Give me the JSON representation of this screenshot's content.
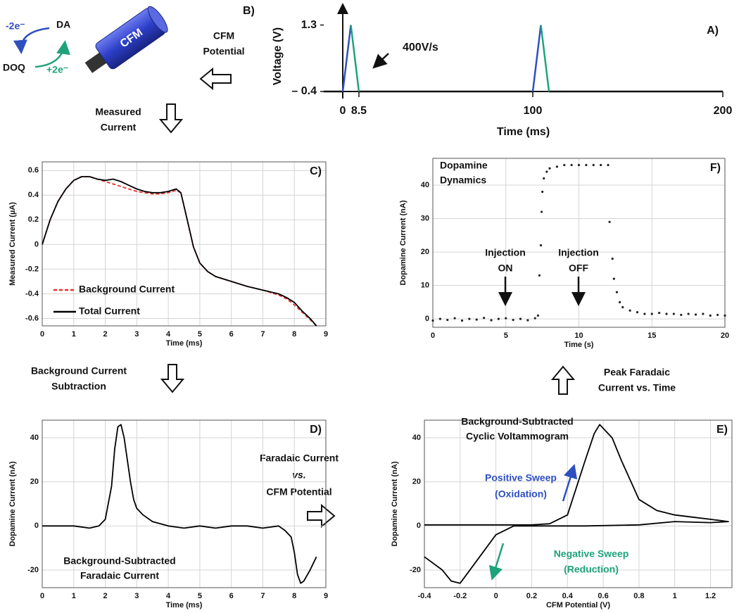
{
  "chart_data": [
    {
      "type": "line",
      "title": "A)",
      "xlabel": "Time (ms)",
      "ylabel": "Voltage (V)",
      "annotations": [
        [
          "400V/s"
        ]
      ],
      "grid": false,
      "xlim": [
        -10,
        200
      ],
      "ylim": [
        -0.4,
        1.4
      ],
      "xticks": [
        0,
        8.5,
        100,
        200
      ],
      "yticks": [
        {
          "value": -0.4,
          "label": "– 0.4"
        },
        1.3
      ],
      "x": [
        -10,
        0,
        4.25,
        8.5,
        100,
        104.25,
        108.5,
        200
      ],
      "series": [
        {
          "color": "#111111",
          "values": [
            -0.4,
            -0.4,
            null,
            -0.4,
            -0.4,
            null,
            -0.4,
            -0.4
          ]
        },
        {
          "color": "#2f4fc0",
          "values": [
            null,
            -0.4,
            1.3,
            null,
            -0.4,
            1.3,
            null,
            null
          ]
        },
        {
          "color": "#1fa37a",
          "values": [
            null,
            null,
            1.3,
            -0.4,
            null,
            1.3,
            -0.4,
            null
          ]
        }
      ]
    },
    {
      "type": "line",
      "title": "C)",
      "xlabel": "Time (ms)",
      "ylabel": "Measured Current (µA)",
      "legend": "lower left",
      "grid": true,
      "xlim": [
        0,
        9
      ],
      "ylim": [
        -0.66,
        0.67
      ],
      "xticks": [
        0,
        1,
        2,
        3,
        4,
        5,
        6,
        7,
        8,
        9
      ],
      "yticks": [
        -0.6,
        -0.4,
        -0.2,
        0,
        0.2,
        0.4,
        0.6
      ],
      "x": [
        0,
        0.25,
        0.5,
        0.75,
        1,
        1.25,
        1.5,
        1.75,
        2,
        2.25,
        2.5,
        2.75,
        3,
        3.25,
        3.5,
        3.75,
        4,
        4.25,
        4.4,
        4.6,
        4.8,
        5,
        5.25,
        5.5,
        6,
        6.5,
        7,
        7.5,
        7.75,
        8,
        8.25,
        8.5,
        8.7
      ],
      "series": [
        {
          "name": "Background Current",
          "color": "#e8302a",
          "dash": true,
          "values": [
            0,
            0.2,
            0.35,
            0.45,
            0.52,
            0.55,
            0.55,
            0.53,
            0.51,
            0.49,
            0.47,
            0.45,
            0.43,
            0.42,
            0.41,
            0.41,
            0.42,
            0.44,
            0.42,
            0.2,
            -0.02,
            -0.15,
            -0.22,
            -0.26,
            -0.3,
            -0.34,
            -0.37,
            -0.41,
            -0.44,
            -0.49,
            -0.55,
            -0.61,
            -0.66
          ]
        },
        {
          "name": "Total Current",
          "color": "#000000",
          "values": [
            0,
            0.2,
            0.35,
            0.45,
            0.52,
            0.55,
            0.55,
            0.53,
            0.52,
            0.53,
            0.51,
            0.48,
            0.45,
            0.43,
            0.42,
            0.42,
            0.43,
            0.45,
            0.42,
            0.2,
            -0.02,
            -0.15,
            -0.22,
            -0.26,
            -0.3,
            -0.34,
            -0.37,
            -0.4,
            -0.43,
            -0.47,
            -0.54,
            -0.6,
            -0.66
          ]
        }
      ]
    },
    {
      "type": "line",
      "title": "D)",
      "xlabel": "Time (ms)",
      "ylabel": "Dopamine Current (nA)",
      "annotations": [
        [
          "Background-Subtracted",
          "Faradaic Current"
        ]
      ],
      "grid": true,
      "xlim": [
        0,
        9
      ],
      "ylim": [
        -28,
        48
      ],
      "xticks": [
        0,
        1,
        2,
        3,
        4,
        5,
        6,
        7,
        8,
        9
      ],
      "yticks": [
        -20,
        0,
        20,
        40
      ],
      "x": [
        0,
        0.5,
        1,
        1.5,
        1.8,
        2,
        2.2,
        2.3,
        2.4,
        2.5,
        2.6,
        2.7,
        2.8,
        2.9,
        3,
        3.2,
        3.5,
        4,
        4.5,
        5,
        5.5,
        6,
        6.5,
        7,
        7.5,
        7.7,
        7.9,
        8,
        8.1,
        8.2,
        8.3,
        8.5,
        8.7
      ],
      "series": [
        {
          "color": "#000000",
          "values": [
            0,
            0,
            0,
            -1,
            0,
            3,
            18,
            35,
            45,
            46,
            40,
            30,
            20,
            12,
            8,
            5,
            2,
            0,
            -1,
            0,
            -1,
            0,
            0,
            -1,
            0,
            -2,
            -5,
            -12,
            -22,
            -26,
            -25,
            -20,
            -14
          ]
        }
      ]
    },
    {
      "type": "line",
      "title": "E)",
      "xlabel": "CFM Potential (V)",
      "ylabel": "Dopamine Current (nA)",
      "annotations": [
        [
          "Background-Subtracted",
          "Cyclic Voltammogram"
        ],
        [
          "Positive Sweep",
          "(Oxidation)"
        ],
        [
          "Negative Sweep",
          "(Reduction)"
        ]
      ],
      "grid": true,
      "xlim": [
        -0.4,
        1.32
      ],
      "ylim": [
        -28,
        48
      ],
      "xticks": [
        -0.4,
        -0.2,
        0,
        0.2,
        0.4,
        0.6,
        0.8,
        1,
        1.2
      ],
      "yticks": [
        -20,
        0,
        20,
        40
      ],
      "x": [
        -0.4,
        -0.2,
        0,
        0.2,
        0.3,
        0.4,
        0.5,
        0.55,
        0.58,
        0.65,
        0.7,
        0.8,
        0.9,
        1,
        1.1,
        1.2,
        1.3,
        1.2,
        1,
        0.8,
        0.5,
        0.3,
        0.1,
        0,
        -0.1,
        -0.2,
        -0.25,
        -0.3,
        -0.4
      ],
      "series": [
        {
          "color": "#000000",
          "values": [
            0.5,
            0.5,
            0.5,
            0.5,
            1,
            5,
            30,
            42,
            46,
            40,
            30,
            12,
            7,
            5,
            4,
            3,
            2,
            1.5,
            2,
            0.5,
            0,
            0,
            0,
            -4,
            -15,
            -26,
            -25,
            -20,
            -14
          ]
        }
      ]
    },
    {
      "type": "scatter",
      "title": "F)",
      "xlabel": "Time (s)",
      "ylabel": "Dopamine Current (nA)",
      "annotations": [
        [
          "Dopamine",
          "Dynamics"
        ],
        [
          "Injection",
          "ON"
        ],
        [
          "Injection",
          "OFF"
        ]
      ],
      "grid": true,
      "xlim": [
        0,
        20
      ],
      "ylim": [
        -2.5,
        48
      ],
      "xticks": [
        0,
        5,
        10,
        15,
        20
      ],
      "yticks": [
        0,
        10,
        20,
        30,
        40
      ],
      "x": [
        0,
        0.5,
        1,
        1.5,
        2,
        2.5,
        3,
        3.5,
        4,
        4.5,
        5,
        5.5,
        6,
        6.5,
        7,
        7.2,
        7.3,
        7.4,
        7.45,
        7.5,
        7.6,
        7.8,
        8,
        8.5,
        9,
        9.5,
        10,
        10.5,
        11,
        11.5,
        12,
        12.1,
        12.3,
        12.4,
        12.6,
        12.8,
        13,
        13.5,
        14,
        14.5,
        15,
        15.5,
        16,
        16.5,
        17,
        17.5,
        18,
        18.5,
        19,
        19.5,
        20
      ],
      "series": [
        {
          "color": "#222222",
          "values": [
            -0.5,
            0,
            -0.3,
            0.2,
            -0.5,
            0,
            -0.2,
            0.3,
            -0.4,
            0,
            0.2,
            -0.3,
            0,
            -0.4,
            0.2,
            1,
            13,
            22,
            32,
            38,
            42,
            44,
            45,
            45.5,
            46,
            46,
            46,
            46,
            46,
            46,
            46,
            29,
            18,
            12,
            8,
            5,
            3.5,
            2.5,
            2,
            1.5,
            1.5,
            1.8,
            1.5,
            1.5,
            1.2,
            1.5,
            1.3,
            1.5,
            1,
            1.2,
            1
          ]
        }
      ]
    }
  ],
  "diagram": {
    "label": "B)",
    "cfm": "CFM",
    "species": [
      "DA",
      "DOQ"
    ],
    "electrons": [
      "-2e⁻",
      "+2e⁻"
    ],
    "steps": [
      [
        "CFM",
        "Potential"
      ],
      [
        "Measured",
        "Current"
      ],
      [
        "Background Current",
        "Subtraction"
      ],
      [
        "Faradaic Current",
        "vs.",
        "CFM Potential"
      ],
      [
        "Peak Faradaic",
        "Current vs. Time"
      ]
    ]
  }
}
